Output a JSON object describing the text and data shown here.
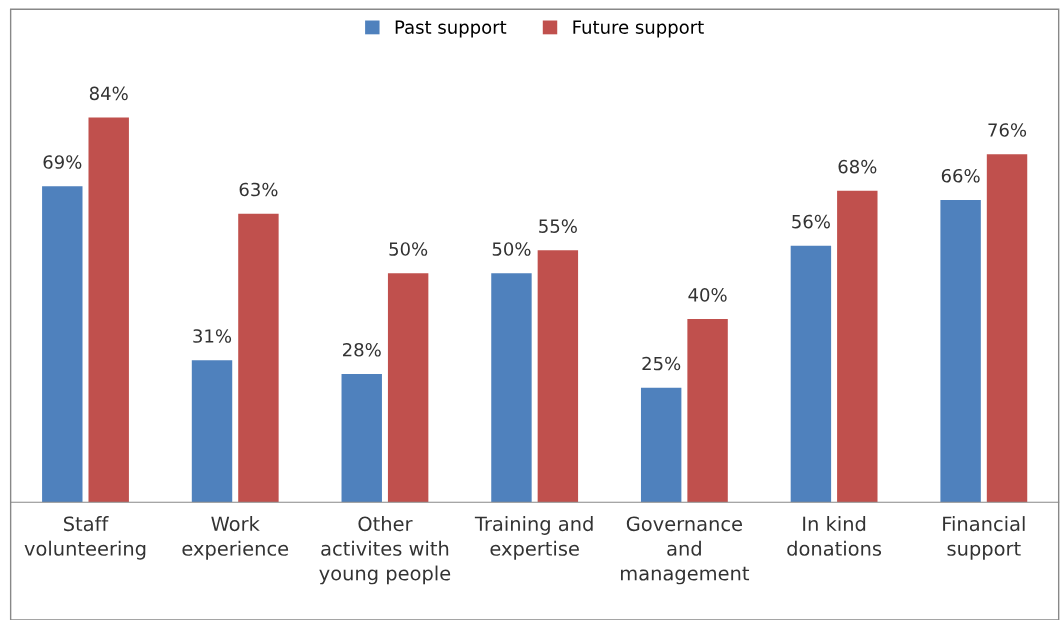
{
  "chart_data": {
    "type": "bar",
    "categories": [
      "Staff\nvolunteering",
      "Work\nexperience",
      "Other\nactivites with\nyoung people",
      "Training and\nexpertise",
      "Governance\nand\nmanagement",
      "In kind\ndonations",
      "Financial\nsupport"
    ],
    "series": [
      {
        "name": "Past support",
        "color": "#4f81bd",
        "values": [
          69,
          31,
          28,
          50,
          25,
          56,
          66
        ],
        "value_labels": [
          "69%",
          "31%",
          "28%",
          "50%",
          "25%",
          "56%",
          "66%"
        ]
      },
      {
        "name": "Future support",
        "color": "#c0504d",
        "values": [
          84,
          63,
          50,
          55,
          40,
          68,
          76
        ],
        "value_labels": [
          "84%",
          "63%",
          "50%",
          "55%",
          "40%",
          "68%",
          "76%"
        ]
      }
    ],
    "legend": "top",
    "grid": false
  }
}
